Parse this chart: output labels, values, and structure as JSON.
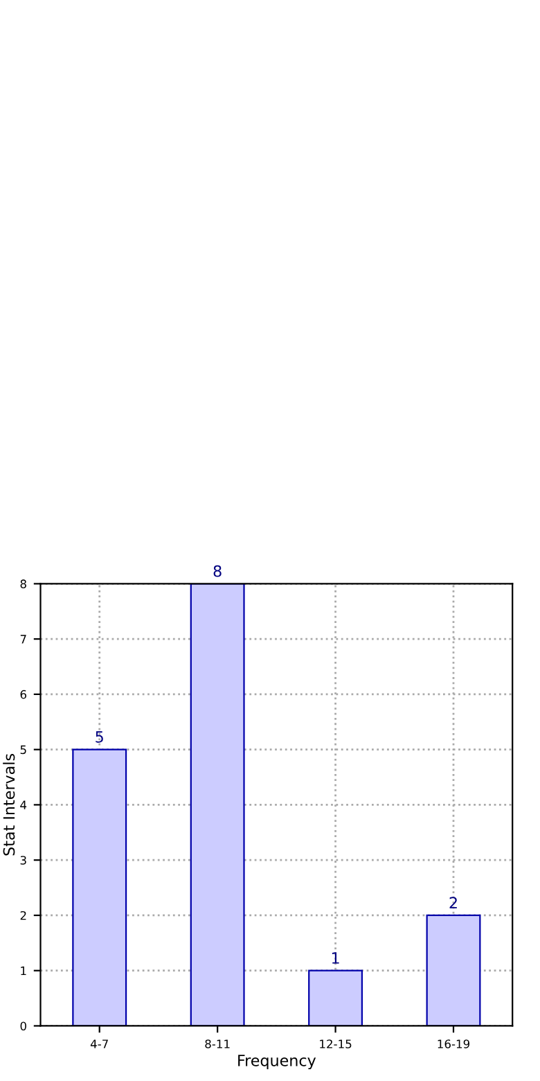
{
  "chart_data": {
    "type": "bar",
    "categories": [
      "4-7",
      "8-11",
      "12-15",
      "16-19"
    ],
    "values": [
      5,
      8,
      1,
      2
    ],
    "color": "#ccccff",
    "xlabel": "Frequency",
    "ylabel": "Stat Intervals",
    "ylim": [
      0,
      8
    ],
    "yticks": [
      0,
      1,
      2,
      3,
      4,
      5,
      6,
      7,
      8
    ],
    "grid": true,
    "data_labels": true
  }
}
